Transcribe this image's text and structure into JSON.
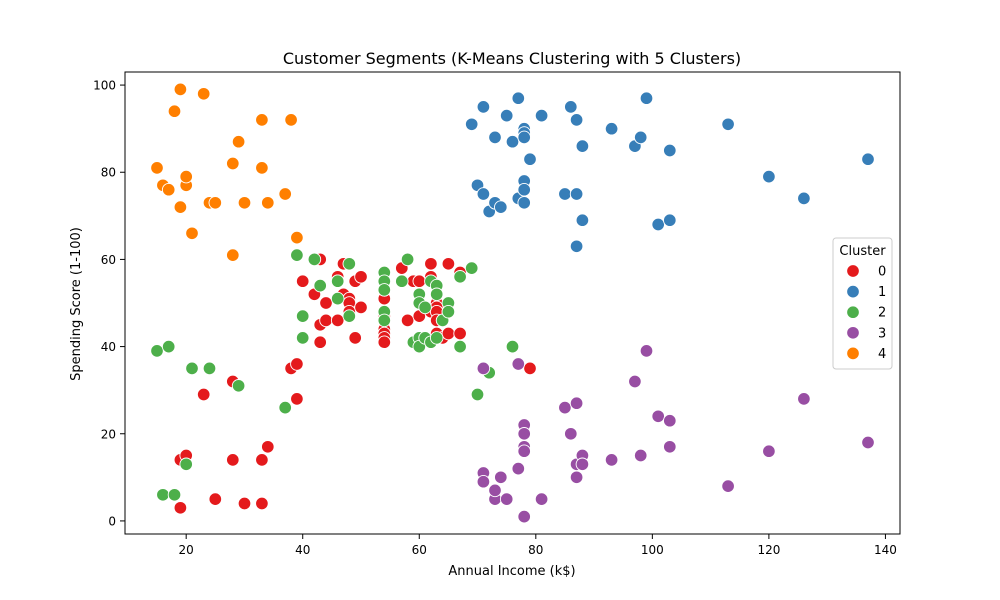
{
  "chart_data": {
    "type": "scatter",
    "title": "Customer Segments (K-Means Clustering with 5 Clusters)",
    "xlabel": "Annual Income (k$)",
    "ylabel": "Spending Score (1-100)",
    "xlim": [
      9.5,
      142.5
    ],
    "ylim": [
      -3,
      103
    ],
    "xticks": [
      20,
      40,
      60,
      80,
      100,
      120,
      140
    ],
    "yticks": [
      0,
      20,
      40,
      60,
      80,
      100
    ],
    "grid": false,
    "legend": {
      "title": "Cluster",
      "placement": "right"
    },
    "series": [
      {
        "name": "0",
        "color": "#e41a1c",
        "points": [
          [
            19,
            14
          ],
          [
            20,
            15
          ],
          [
            19,
            3
          ],
          [
            25,
            5
          ],
          [
            23,
            29
          ],
          [
            28,
            32
          ],
          [
            28,
            14
          ],
          [
            30,
            4
          ],
          [
            33,
            4
          ],
          [
            33,
            14
          ],
          [
            34,
            17
          ],
          [
            38,
            35
          ],
          [
            39,
            36
          ],
          [
            39,
            28
          ],
          [
            40,
            55
          ],
          [
            42,
            52
          ],
          [
            43,
            60
          ],
          [
            43,
            45
          ],
          [
            43,
            41
          ],
          [
            44,
            50
          ],
          [
            44,
            46
          ],
          [
            46,
            56
          ],
          [
            46,
            55
          ],
          [
            46,
            46
          ],
          [
            47,
            52
          ],
          [
            47,
            59
          ],
          [
            48,
            51
          ],
          [
            48,
            50
          ],
          [
            48,
            48
          ],
          [
            49,
            42
          ],
          [
            49,
            55
          ],
          [
            50,
            56
          ],
          [
            50,
            49
          ],
          [
            54,
            51
          ],
          [
            54,
            53
          ],
          [
            54,
            47
          ],
          [
            54,
            46
          ],
          [
            54,
            44
          ],
          [
            54,
            43
          ],
          [
            54,
            42
          ],
          [
            54,
            41
          ],
          [
            57,
            58
          ],
          [
            58,
            46
          ],
          [
            59,
            55
          ],
          [
            60,
            55
          ],
          [
            60,
            47
          ],
          [
            61,
            42
          ],
          [
            62,
            59
          ],
          [
            62,
            56
          ],
          [
            62,
            48
          ],
          [
            63,
            52
          ],
          [
            63,
            50
          ],
          [
            63,
            49
          ],
          [
            63,
            48
          ],
          [
            63,
            46
          ],
          [
            63,
            43
          ],
          [
            64,
            42
          ],
          [
            65,
            59
          ],
          [
            65,
            48
          ],
          [
            65,
            43
          ],
          [
            67,
            43
          ],
          [
            67,
            57
          ],
          [
            79,
            35
          ]
        ]
      },
      {
        "name": "1",
        "color": "#377eb8",
        "points": [
          [
            69,
            91
          ],
          [
            70,
            77
          ],
          [
            71,
            95
          ],
          [
            71,
            75
          ],
          [
            72,
            71
          ],
          [
            73,
            88
          ],
          [
            73,
            73
          ],
          [
            74,
            72
          ],
          [
            75,
            93
          ],
          [
            76,
            87
          ],
          [
            77,
            97
          ],
          [
            77,
            74
          ],
          [
            78,
            90
          ],
          [
            78,
            89
          ],
          [
            78,
            88
          ],
          [
            78,
            78
          ],
          [
            78,
            76
          ],
          [
            78,
            73
          ],
          [
            79,
            83
          ],
          [
            81,
            93
          ],
          [
            85,
            75
          ],
          [
            86,
            95
          ],
          [
            87,
            92
          ],
          [
            87,
            75
          ],
          [
            87,
            63
          ],
          [
            88,
            86
          ],
          [
            88,
            69
          ],
          [
            93,
            90
          ],
          [
            97,
            86
          ],
          [
            98,
            88
          ],
          [
            99,
            97
          ],
          [
            101,
            68
          ],
          [
            103,
            85
          ],
          [
            103,
            69
          ],
          [
            113,
            91
          ],
          [
            120,
            79
          ],
          [
            126,
            74
          ],
          [
            137,
            83
          ]
        ]
      },
      {
        "name": "2",
        "color": "#4daf4a",
        "points": [
          [
            15,
            39
          ],
          [
            16,
            6
          ],
          [
            17,
            40
          ],
          [
            18,
            6
          ],
          [
            20,
            13
          ],
          [
            21,
            35
          ],
          [
            24,
            35
          ],
          [
            29,
            31
          ],
          [
            37,
            26
          ],
          [
            39,
            61
          ],
          [
            40,
            47
          ],
          [
            40,
            42
          ],
          [
            42,
            60
          ],
          [
            43,
            54
          ],
          [
            46,
            51
          ],
          [
            46,
            55
          ],
          [
            48,
            59
          ],
          [
            48,
            47
          ],
          [
            54,
            57
          ],
          [
            54,
            55
          ],
          [
            54,
            53
          ],
          [
            54,
            48
          ],
          [
            54,
            46
          ],
          [
            57,
            55
          ],
          [
            58,
            60
          ],
          [
            59,
            41
          ],
          [
            60,
            52
          ],
          [
            60,
            50
          ],
          [
            60,
            42
          ],
          [
            60,
            40
          ],
          [
            61,
            49
          ],
          [
            61,
            42
          ],
          [
            62,
            41
          ],
          [
            62,
            55
          ],
          [
            63,
            54
          ],
          [
            63,
            52
          ],
          [
            63,
            42
          ],
          [
            64,
            46
          ],
          [
            64,
            46
          ],
          [
            65,
            50
          ],
          [
            65,
            48
          ],
          [
            67,
            56
          ],
          [
            67,
            40
          ],
          [
            69,
            58
          ],
          [
            70,
            29
          ],
          [
            72,
            34
          ],
          [
            76,
            40
          ]
        ]
      },
      {
        "name": "3",
        "color": "#984ea3",
        "points": [
          [
            71,
            35
          ],
          [
            71,
            11
          ],
          [
            71,
            9
          ],
          [
            73,
            5
          ],
          [
            73,
            7
          ],
          [
            74,
            10
          ],
          [
            75,
            5
          ],
          [
            77,
            12
          ],
          [
            77,
            36
          ],
          [
            78,
            22
          ],
          [
            78,
            20
          ],
          [
            78,
            17
          ],
          [
            78,
            16
          ],
          [
            78,
            1
          ],
          [
            81,
            5
          ],
          [
            85,
            26
          ],
          [
            86,
            20
          ],
          [
            87,
            27
          ],
          [
            87,
            13
          ],
          [
            87,
            10
          ],
          [
            88,
            15
          ],
          [
            88,
            13
          ],
          [
            93,
            14
          ],
          [
            97,
            32
          ],
          [
            98,
            15
          ],
          [
            99,
            39
          ],
          [
            101,
            24
          ],
          [
            103,
            23
          ],
          [
            103,
            17
          ],
          [
            113,
            8
          ],
          [
            120,
            16
          ],
          [
            126,
            28
          ],
          [
            137,
            18
          ]
        ]
      },
      {
        "name": "4",
        "color": "#ff7f00",
        "points": [
          [
            15,
            81
          ],
          [
            16,
            77
          ],
          [
            17,
            76
          ],
          [
            18,
            94
          ],
          [
            19,
            99
          ],
          [
            19,
            72
          ],
          [
            20,
            77
          ],
          [
            20,
            79
          ],
          [
            21,
            66
          ],
          [
            23,
            98
          ],
          [
            24,
            73
          ],
          [
            25,
            73
          ],
          [
            28,
            82
          ],
          [
            28,
            61
          ],
          [
            29,
            87
          ],
          [
            30,
            73
          ],
          [
            33,
            92
          ],
          [
            33,
            81
          ],
          [
            34,
            73
          ],
          [
            37,
            75
          ],
          [
            38,
            92
          ],
          [
            39,
            65
          ]
        ]
      }
    ]
  }
}
